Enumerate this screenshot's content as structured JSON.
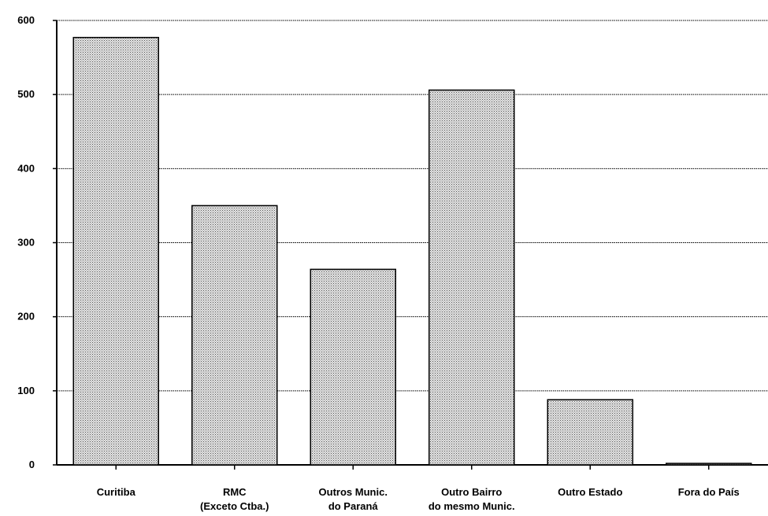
{
  "chart_data": {
    "type": "bar",
    "categories": [
      [
        "Curitiba"
      ],
      [
        "RMC",
        "(Exceto Ctba.)"
      ],
      [
        "Outros Munic.",
        "do Paraná"
      ],
      [
        "Outro Bairro",
        "do mesmo Munic."
      ],
      [
        "Outro Estado"
      ],
      [
        "Fora do País"
      ]
    ],
    "values": [
      577,
      350,
      264,
      506,
      88,
      2
    ],
    "ylim": [
      0,
      600
    ],
    "yticks": [
      0,
      100,
      200,
      300,
      400,
      500,
      600
    ],
    "grid": true,
    "colors": {
      "bar_fill": "#c8c8c8",
      "bar_stroke": "#000000",
      "grid": "#000000"
    }
  }
}
